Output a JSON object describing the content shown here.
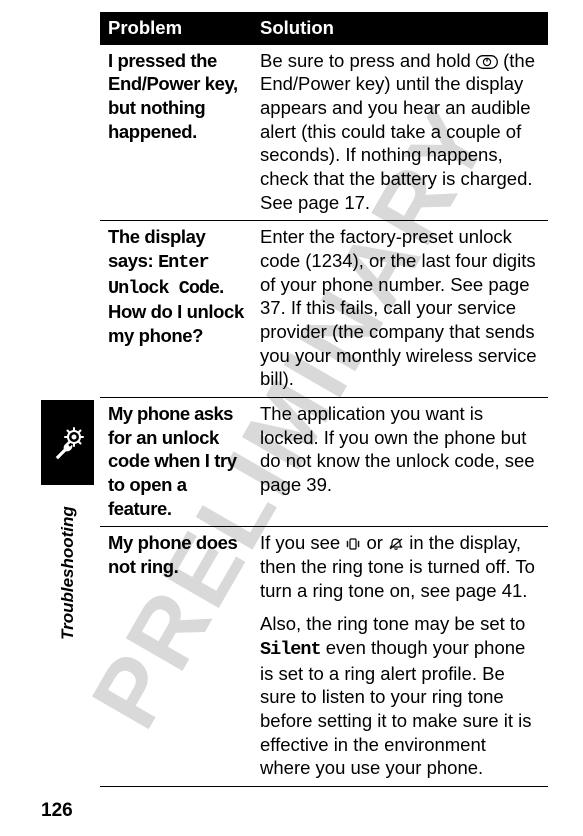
{
  "watermark": "PRELIMINARY",
  "side_label": "Troubleshooting",
  "page_number": "126",
  "table": {
    "columns": [
      "Problem",
      "Solution"
    ],
    "rows": [
      {
        "problem_html": "I pressed the End/Power key, but nothing happened.",
        "solution_html": "Be sure to press and hold {POWERKEY} (the End/Power key) until the display appears and you hear an audible alert (this could take a couple of seconds). If nothing happens, check that the battery is charged. See page 17."
      },
      {
        "problem_html": "The display says: <span class=\"mono\">Enter Unlock Code</span>. How do I unlock my phone?",
        "solution_html": "Enter the factory-preset unlock code (1234), or the last four digits of your phone number. See page 37. If this fails, call your service provider (the company that sends you your monthly wireless service bill)."
      },
      {
        "problem_html": "<span class=\"tight\">My phone asks</span> for an unlock code when I try to open a feature.",
        "solution_html": "The application you want is locked. If you own the phone but do not know the unlock code, see page 39."
      },
      {
        "problem_html": "My phone does not ring.",
        "solution_html": "<p>If you see {VIBICON} or {RINGOFFICON} in the display, then the ring tone is turned off. To turn a ring tone on, see page 41.</p><p>Also, the ring tone may be set to <span class=\"mono\">Silent</span> even though your phone is set to a ring alert profile. Be sure to listen to your ring tone before setting it to make sure it is effective in the environment where you use your phone.</p>"
      }
    ]
  },
  "icons": {
    "power_key_svg": "<svg class=\"icon-inline\" data-name=\"power-key-icon\" data-interactable=\"false\" width=\"22\" height=\"14\" viewBox=\"0 0 22 14\"><rect x=\"0.7\" y=\"0.7\" width=\"20.6\" height=\"12.6\" rx=\"6.3\" ry=\"6.3\" fill=\"none\" stroke=\"#000\" stroke-width=\"1.3\"/><circle cx=\"11\" cy=\"7\" r=\"3.6\" fill=\"none\" stroke=\"#000\" stroke-width=\"1.2\"/><line x1=\"11\" y1=\"3.2\" x2=\"11\" y2=\"6.6\" stroke=\"#000\" stroke-width=\"1.2\"/></svg>",
    "vibrate_svg": "<svg class=\"icon-inline\" data-name=\"vibrate-icon\" data-interactable=\"false\" width=\"16\" height=\"14\" viewBox=\"0 0 16 14\"><rect x=\"5\" y=\"2\" width=\"6\" height=\"10\" rx=\"1\" fill=\"none\" stroke=\"#000\" stroke-width=\"1.2\"/><path d=\"M3 4 L2 5 L3 6 L2 7 L3 8 L2 9 L3 10\" fill=\"none\" stroke=\"#000\" stroke-width=\"1\"/><path d=\"M13 4 L14 5 L13 6 L14 7 L13 8 L14 9 L13 10\" fill=\"none\" stroke=\"#000\" stroke-width=\"1\"/></svg>",
    "ring_off_svg": "<svg class=\"icon-inline\" data-name=\"ring-off-icon\" data-interactable=\"false\" width=\"16\" height=\"14\" viewBox=\"0 0 16 14\"><path d=\"M8 2 C5 2 4 4 4 6 L4 8 L2.5 10 L13.5 10 L12 8 L12 6 C12 4 11 2 8 2 Z\" fill=\"none\" stroke=\"#000\" stroke-width=\"1.2\"/><path d=\"M6.5 11.5 A1.8 1.8 0 0 0 9.5 11.5\" fill=\"none\" stroke=\"#000\" stroke-width=\"1.2\"/><line x1=\"2\" y1=\"12\" x2=\"14\" y2=\"2\" stroke=\"#000\" stroke-width=\"1.2\"/></svg>",
    "wrench_svg": "<svg width=\"40\" height=\"40\" viewBox=\"0 0 40 40\"><g stroke=\"#fff\" fill=\"none\" stroke-width=\"2\" stroke-linecap=\"round\"><circle cx=\"26\" cy=\"14\" r=\"6\"/><line x1=\"26\" y1=\"5\" x2=\"26\" y2=\"8\"/><line x1=\"26\" y1=\"20\" x2=\"26\" y2=\"23\"/><line x1=\"17\" y1=\"14\" x2=\"20\" y2=\"14\"/><line x1=\"32\" y1=\"14\" x2=\"35\" y2=\"14\"/><line x1=\"19.5\" y1=\"7.5\" x2=\"21.5\" y2=\"9.5\"/><line x1=\"30.5\" y1=\"18.5\" x2=\"32.5\" y2=\"20.5\"/><line x1=\"30.5\" y1=\"9.5\" x2=\"32.5\" y2=\"7.5\"/><line x1=\"19.5\" y1=\"20.5\" x2=\"21.5\" y2=\"18.5\"/><circle cx=\"26\" cy=\"14\" r=\"1.5\" fill=\"#fff\"/><path d=\"M8 34 L16 26 A5 5 0 0 1 22 20 L20 22 L22 24 L24 22 A5 5 0 0 1 18 28 L10 36 Z\" fill=\"#fff\" stroke=\"#fff\" stroke-width=\"0.5\"/></g></svg>"
  }
}
